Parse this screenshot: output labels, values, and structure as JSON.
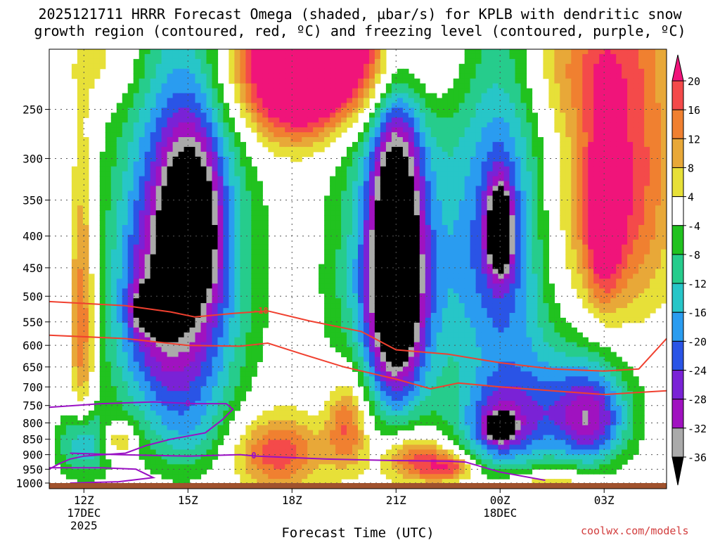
{
  "title_lines": [
    "2025121711 HRRR Forecast Omega (shaded, µbar/s) for KPLB with dendritic snow",
    "growth region (contoured, red, ºC) and freezing level (contoured, purple, ºC)"
  ],
  "footer": "coolwx.com/models",
  "chart_data": {
    "type": "heatmap",
    "title": "2025121711 HRRR Forecast Omega (shaded, µbar/s) for KPLB with dendritic snow growth region (contoured, red, ºC) and freezing level (contoured, purple, ºC)",
    "xlabel": "Forecast Time (UTC)",
    "ylabel": "",
    "x_unit": "hours since 2025-12-17 11Z",
    "x_range": [
      11,
      28.8
    ],
    "y_scale": "log",
    "y_range": [
      1000,
      200
    ],
    "y_ticks": [
      250,
      300,
      350,
      400,
      450,
      500,
      550,
      600,
      650,
      700,
      750,
      800,
      850,
      900,
      950,
      1000
    ],
    "x_ticks": [
      {
        "hour": 12,
        "label": "12Z",
        "sub1": "17DEC",
        "sub2": "2025"
      },
      {
        "hour": 15,
        "label": "15Z",
        "sub1": "",
        "sub2": ""
      },
      {
        "hour": 18,
        "label": "18Z",
        "sub1": "",
        "sub2": ""
      },
      {
        "hour": 21,
        "label": "21Z",
        "sub1": "",
        "sub2": ""
      },
      {
        "hour": 24,
        "label": "00Z",
        "sub1": "18DEC",
        "sub2": ""
      },
      {
        "hour": 27,
        "label": "03Z",
        "sub1": "",
        "sub2": ""
      }
    ],
    "grid": true,
    "colorbar": {
      "levels": [
        20,
        16,
        12,
        8,
        4,
        -4,
        -8,
        -12,
        -16,
        -20,
        -24,
        -28,
        -32,
        -36
      ],
      "colors": [
        "#f5297a",
        "#f44a4a",
        "#f08030",
        "#e8a838",
        "#e7e038",
        "#ffffff",
        "#21c21f",
        "#26cc8c",
        "#27c6c8",
        "#2a9cf0",
        "#2a54e6",
        "#7a22d6",
        "#a012c0",
        "#aaaaaa",
        "#000000"
      ],
      "neutral_color": "#ffffff",
      "max_color": "#f0147a",
      "min_color": "#000000"
    },
    "blobs": [
      {
        "x": 11.95,
        "p": 540,
        "rx": 0.35,
        "ry": 260,
        "v": 17
      },
      {
        "x": 12.0,
        "p": 850,
        "rx": 0.7,
        "ry": 110,
        "v": -18
      },
      {
        "x": 13.0,
        "p": 840,
        "rx": 0.5,
        "ry": 50,
        "v": 12
      },
      {
        "x": 12.8,
        "p": 210,
        "rx": 1.0,
        "ry": 35,
        "v": 7
      },
      {
        "x": 14.2,
        "p": 500,
        "rx": 1.5,
        "ry": 250,
        "v": -24
      },
      {
        "x": 14.0,
        "p": 520,
        "rx": 0.5,
        "ry": 40,
        "v": -34
      },
      {
        "x": 15.2,
        "p": 440,
        "rx": 1.6,
        "ry": 310,
        "v": -20
      },
      {
        "x": 15.1,
        "p": 380,
        "rx": 0.8,
        "ry": 110,
        "v": -26
      },
      {
        "x": 15.0,
        "p": 820,
        "rx": 1.2,
        "ry": 150,
        "v": -8
      },
      {
        "x": 18.8,
        "p": 210,
        "rx": 2.8,
        "ry": 55,
        "v": 17
      },
      {
        "x": 18.0,
        "p": 230,
        "rx": 1.4,
        "ry": 55,
        "v": 19
      },
      {
        "x": 19.5,
        "p": 200,
        "rx": 2.5,
        "ry": 50,
        "v": 18
      },
      {
        "x": 17.6,
        "p": 880,
        "rx": 1.3,
        "ry": 120,
        "v": 19
      },
      {
        "x": 19.6,
        "p": 790,
        "rx": 0.6,
        "ry": 140,
        "v": 18
      },
      {
        "x": 21.6,
        "p": 900,
        "rx": 1.0,
        "ry": 80,
        "v": 19
      },
      {
        "x": 22.6,
        "p": 925,
        "rx": 0.7,
        "ry": 45,
        "v": 16
      },
      {
        "x": 21.0,
        "p": 470,
        "rx": 1.6,
        "ry": 290,
        "v": -24
      },
      {
        "x": 21.0,
        "p": 450,
        "rx": 0.7,
        "ry": 220,
        "v": -40
      },
      {
        "x": 24.0,
        "p": 400,
        "rx": 1.3,
        "ry": 240,
        "v": -24
      },
      {
        "x": 24.0,
        "p": 390,
        "rx": 0.35,
        "ry": 60,
        "v": -34
      },
      {
        "x": 24.0,
        "p": 800,
        "rx": 1.2,
        "ry": 130,
        "v": -22
      },
      {
        "x": 24.0,
        "p": 800,
        "rx": 0.35,
        "ry": 35,
        "v": -34
      },
      {
        "x": 25.6,
        "p": 720,
        "rx": 2.0,
        "ry": 180,
        "v": -14
      },
      {
        "x": 26.6,
        "p": 780,
        "rx": 1.0,
        "ry": 130,
        "v": -22
      },
      {
        "x": 26.8,
        "p": 360,
        "rx": 1.5,
        "ry": 190,
        "v": 12
      },
      {
        "x": 27.0,
        "p": 370,
        "rx": 0.5,
        "ry": 130,
        "v": 17
      },
      {
        "x": 28.0,
        "p": 300,
        "rx": 1.2,
        "ry": 200,
        "v": 12
      },
      {
        "x": 25.5,
        "p": 975,
        "rx": 1.2,
        "ry": 40,
        "v": 10
      },
      {
        "x": 26.2,
        "p": 210,
        "rx": 1.8,
        "ry": 55,
        "v": 8
      }
    ],
    "dgz_lines": [
      {
        "name": "-18",
        "label": "-18",
        "points": [
          [
            11,
            510
          ],
          [
            13.2,
            518
          ],
          [
            14.5,
            530
          ],
          [
            15.2,
            540
          ],
          [
            16.3,
            533
          ],
          [
            17.3,
            528
          ],
          [
            18.5,
            548
          ],
          [
            20.0,
            570
          ],
          [
            21.0,
            610
          ],
          [
            22.5,
            620
          ],
          [
            24.0,
            640
          ],
          [
            25.5,
            655
          ],
          [
            27.0,
            660
          ],
          [
            28.0,
            655
          ],
          [
            28.8,
            585
          ]
        ],
        "label_at": [
          17.1,
          528
        ]
      },
      {
        "name": "-12",
        "label": "",
        "points": [
          [
            11,
            578
          ],
          [
            13.2,
            585
          ],
          [
            15.0,
            600
          ],
          [
            16.5,
            602
          ],
          [
            17.3,
            595
          ],
          [
            18.3,
            620
          ],
          [
            19.5,
            650
          ],
          [
            21.0,
            680
          ],
          [
            22.0,
            705
          ],
          [
            22.8,
            690
          ],
          [
            24.0,
            700
          ],
          [
            25.5,
            710
          ],
          [
            27.0,
            720
          ],
          [
            28.8,
            710
          ]
        ]
      }
    ],
    "freezing_lines": [
      {
        "name": "0",
        "label": "0",
        "points": [
          [
            11,
            755
          ],
          [
            12.5,
            745
          ],
          [
            14.0,
            740
          ],
          [
            15.2,
            745
          ],
          [
            16.1,
            745
          ],
          [
            16.3,
            760
          ],
          [
            16.0,
            790
          ],
          [
            15.5,
            830
          ],
          [
            14.5,
            850
          ],
          [
            13.8,
            870
          ],
          [
            13.2,
            895
          ],
          [
            12.0,
            905
          ],
          [
            11.6,
            915
          ],
          [
            11.3,
            930
          ],
          [
            11.0,
            950
          ]
        ],
        "label_at": [
          15.0,
          745
        ]
      },
      {
        "name": "0",
        "label": "0",
        "points": [
          [
            11.6,
            895
          ],
          [
            13.0,
            900
          ],
          [
            15.0,
            905
          ],
          [
            16.5,
            900
          ],
          [
            17.0,
            905
          ],
          [
            19.0,
            915
          ],
          [
            21.0,
            920
          ],
          [
            22.5,
            922
          ],
          [
            23.0,
            925
          ],
          [
            24.0,
            960
          ],
          [
            25.3,
            990
          ]
        ],
        "label_at": [
          16.9,
          903
        ]
      },
      {
        "name": "0",
        "label": "",
        "points": [
          [
            11.0,
            945
          ],
          [
            12.5,
            945
          ],
          [
            13.5,
            950
          ],
          [
            14.0,
            980
          ],
          [
            13.0,
            995
          ],
          [
            11.6,
            1000
          ]
        ]
      }
    ],
    "ground": {
      "from": 1000,
      "to": 1010,
      "color": "#a0522d"
    },
    "line_colors": {
      "dgz": "#f0402f",
      "freezing": "#9a10c4"
    }
  }
}
